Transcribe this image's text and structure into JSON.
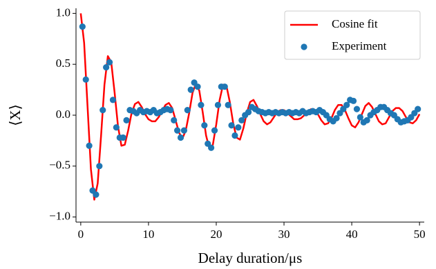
{
  "chart_data": {
    "type": "line",
    "xlabel": "Delay duration/μs",
    "ylabel": "⟨X⟩",
    "xlim": [
      -0.7,
      50.7
    ],
    "ylim": [
      -1.05,
      1.05
    ],
    "xticks": [
      0,
      10,
      20,
      30,
      40,
      50
    ],
    "yticks": [
      {
        "value": -1,
        "label": "−1.0"
      },
      {
        "value": -0.5,
        "label": "−0.5"
      },
      {
        "value": 0,
        "label": "0.0"
      },
      0.5,
      {
        "value": 1,
        "label": "1.0"
      }
    ],
    "grid": false,
    "legend": "upper right",
    "series": [
      {
        "name": "Cosine fit",
        "type": "line",
        "color": "#ff0000",
        "x": [
          0,
          0.5,
          1,
          1.5,
          2,
          2.5,
          3,
          3.5,
          4,
          4.5,
          5,
          5.5,
          6,
          6.5,
          7,
          7.5,
          8,
          8.5,
          9,
          9.5,
          10,
          10.5,
          11,
          11.5,
          12,
          12.5,
          13,
          13.5,
          14,
          14.5,
          15,
          15.5,
          16,
          16.5,
          17,
          17.5,
          18,
          18.5,
          19,
          19.5,
          20,
          20.5,
          21,
          21.5,
          22,
          22.5,
          23,
          23.5,
          24,
          24.5,
          25,
          25.5,
          26,
          26.5,
          27,
          27.5,
          28,
          28.5,
          29,
          29.5,
          30,
          30.5,
          31,
          31.5,
          32,
          32.5,
          33,
          33.5,
          34,
          34.5,
          35,
          35.5,
          36,
          36.5,
          37,
          37.5,
          38,
          38.5,
          39,
          39.5,
          40,
          40.5,
          41,
          41.5,
          42,
          42.5,
          43,
          43.5,
          44,
          44.5,
          45,
          45.5,
          46,
          46.5,
          47,
          47.5,
          48,
          48.5,
          49,
          49.5,
          50
        ],
        "values": [
          1.0,
          0.71,
          0.09,
          -0.53,
          -0.83,
          -0.67,
          -0.2,
          0.3,
          0.58,
          0.52,
          0.22,
          -0.11,
          -0.3,
          -0.29,
          -0.15,
          0.02,
          0.11,
          0.13,
          0.08,
          0.01,
          -0.04,
          -0.06,
          -0.06,
          -0.02,
          0.04,
          0.1,
          0.12,
          0.07,
          -0.05,
          -0.17,
          -0.23,
          -0.15,
          0.02,
          0.22,
          0.31,
          0.24,
          0.03,
          -0.2,
          -0.33,
          -0.29,
          -0.09,
          0.15,
          0.3,
          0.29,
          0.13,
          -0.08,
          -0.22,
          -0.24,
          -0.13,
          0.02,
          0.13,
          0.15,
          0.09,
          0.01,
          -0.06,
          -0.09,
          -0.07,
          -0.02,
          0.03,
          0.05,
          0.05,
          0.02,
          -0.01,
          -0.04,
          -0.04,
          -0.03,
          0.0,
          0.04,
          0.06,
          0.05,
          0.01,
          -0.05,
          -0.09,
          -0.08,
          -0.03,
          0.05,
          0.1,
          0.1,
          0.05,
          -0.03,
          -0.1,
          -0.12,
          -0.07,
          0.01,
          0.09,
          0.12,
          0.08,
          0.01,
          -0.06,
          -0.09,
          -0.08,
          -0.02,
          0.04,
          0.07,
          0.07,
          0.04,
          -0.02,
          -0.07,
          -0.08,
          -0.05,
          0.01
        ]
      },
      {
        "name": "Experiment",
        "type": "scatter",
        "color": "#1f77b4",
        "x": [
          0.25,
          0.75,
          1.25,
          1.75,
          2.25,
          2.75,
          3.25,
          3.75,
          4.25,
          4.75,
          5.25,
          5.75,
          6.25,
          6.75,
          7.25,
          7.75,
          8.25,
          8.75,
          9.25,
          9.75,
          10.25,
          10.75,
          11.25,
          11.75,
          12.25,
          12.75,
          13.25,
          13.75,
          14.25,
          14.75,
          15.25,
          15.75,
          16.25,
          16.75,
          17.25,
          17.75,
          18.25,
          18.75,
          19.25,
          19.75,
          20.25,
          20.75,
          21.25,
          21.75,
          22.25,
          22.75,
          23.25,
          23.75,
          24.25,
          24.75,
          25.25,
          25.75,
          26.25,
          26.75,
          27.25,
          27.75,
          28.25,
          28.75,
          29.25,
          29.75,
          30.25,
          30.75,
          31.25,
          31.75,
          32.25,
          32.75,
          33.25,
          33.75,
          34.25,
          34.75,
          35.25,
          35.75,
          36.25,
          36.75,
          37.25,
          37.75,
          38.25,
          38.75,
          39.25,
          39.75,
          40.25,
          40.75,
          41.25,
          41.75,
          42.25,
          42.75,
          43.25,
          43.75,
          44.25,
          44.75,
          45.25,
          45.75,
          46.25,
          46.75,
          47.25,
          47.75,
          48.25,
          48.75,
          49.25,
          49.75
        ],
        "values": [
          0.87,
          0.35,
          -0.3,
          -0.74,
          -0.78,
          -0.5,
          0.05,
          0.47,
          0.52,
          0.15,
          -0.12,
          -0.22,
          -0.22,
          -0.05,
          0.05,
          0.04,
          0.02,
          0.05,
          0.03,
          0.04,
          0.03,
          0.05,
          0.02,
          0.03,
          0.05,
          0.06,
          0.05,
          -0.05,
          -0.15,
          -0.22,
          -0.15,
          0.05,
          0.25,
          0.32,
          0.28,
          0.1,
          -0.1,
          -0.28,
          -0.32,
          -0.15,
          0.1,
          0.28,
          0.28,
          0.1,
          -0.1,
          -0.2,
          -0.12,
          -0.05,
          0.0,
          0.03,
          0.08,
          0.06,
          0.04,
          0.03,
          0.02,
          0.03,
          0.02,
          0.03,
          0.02,
          0.03,
          0.02,
          0.03,
          0.02,
          0.03,
          0.02,
          0.04,
          0.02,
          0.03,
          0.04,
          0.03,
          0.05,
          0.03,
          0.0,
          -0.04,
          -0.06,
          -0.03,
          0.02,
          0.06,
          0.1,
          0.15,
          0.14,
          0.06,
          -0.02,
          -0.07,
          -0.05,
          0.0,
          0.03,
          0.05,
          0.08,
          0.08,
          0.05,
          0.02,
          0.0,
          -0.04,
          -0.07,
          -0.06,
          -0.05,
          -0.02,
          0.02,
          0.06
        ]
      }
    ]
  }
}
